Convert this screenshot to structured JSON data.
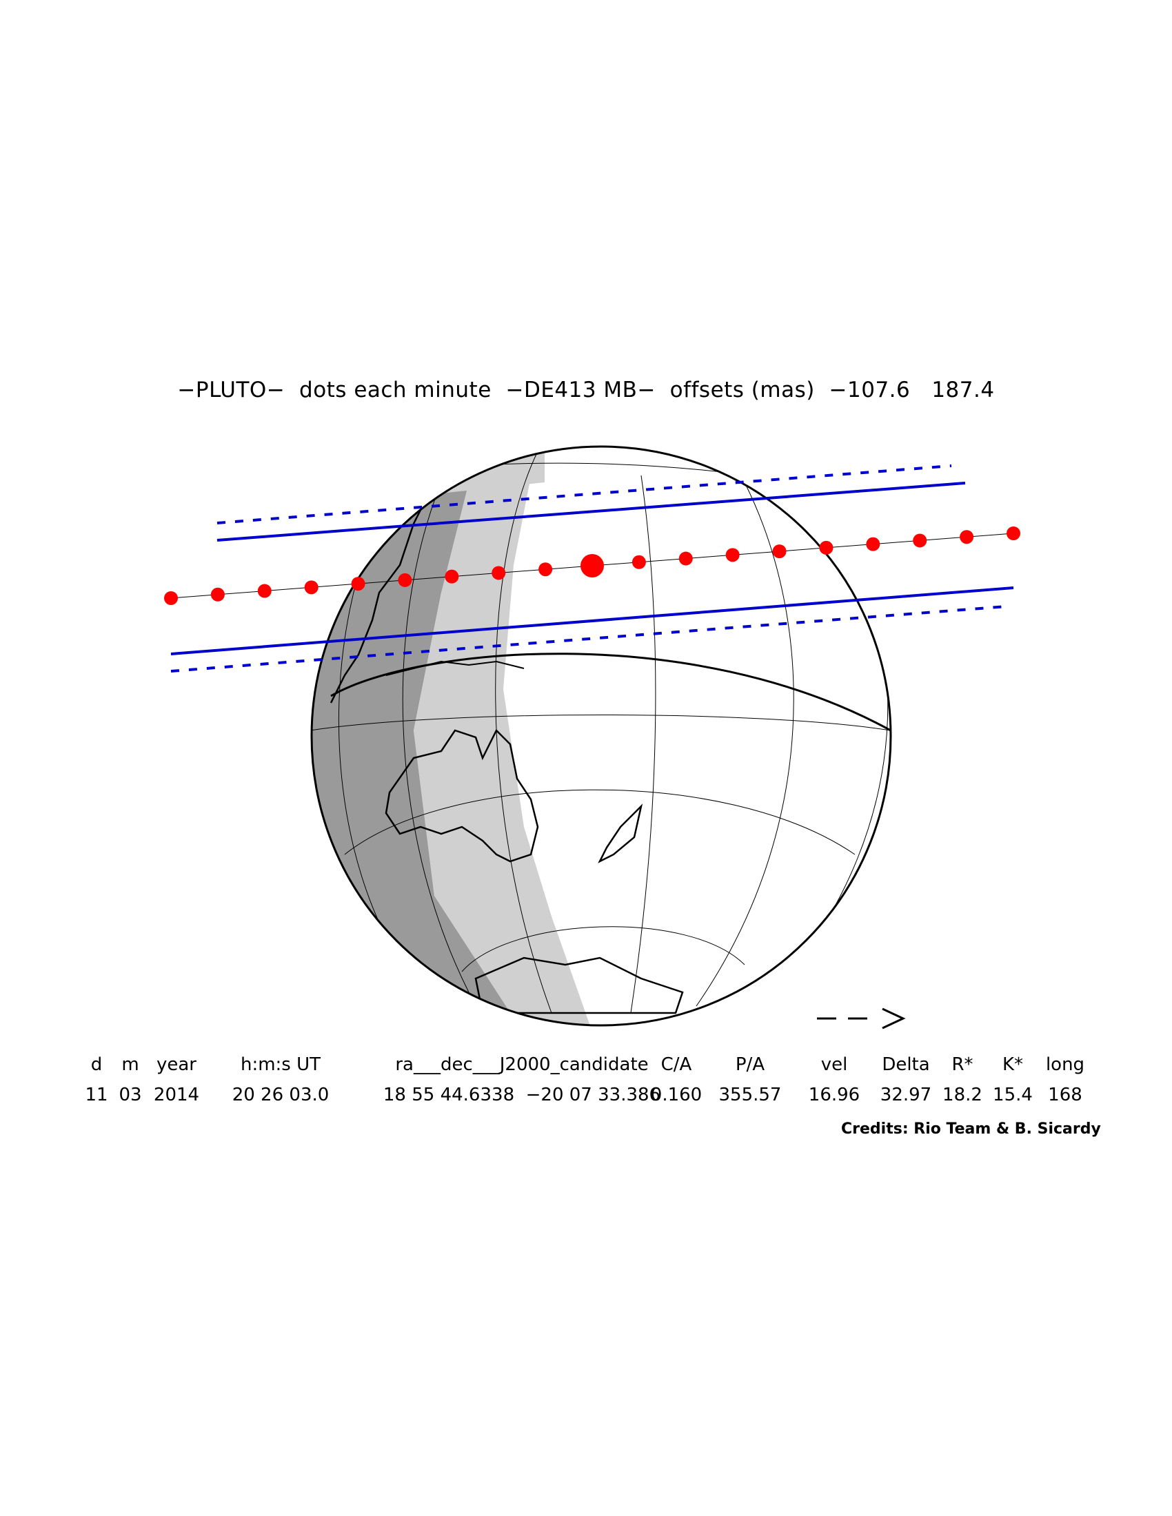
{
  "title": "−PLUTO−  dots each minute  −DE413 MB−  offsets (mas)  −107.6   187.4",
  "direction_arrow": "− −>",
  "table": {
    "headers": [
      "d",
      "m",
      "year",
      "h:m:s UT",
      "ra___dec___J2000_candidate",
      "C/A",
      "P/A",
      "vel",
      "Delta",
      "R*",
      "K*",
      "long"
    ],
    "values": [
      "11",
      "03",
      "2014",
      "20 26 03.0",
      "18 55 44.6338  −20 07 33.386",
      "0.160",
      "355.57",
      "16.96",
      "32.97",
      "18.2",
      "15.4",
      "168"
    ]
  },
  "credits": "Credits: Rio Team & B. Sicardy",
  "colors": {
    "path_dots": "#ff0000",
    "shadow_limits": "#0000cc",
    "night": "#9a9a9a",
    "twilight": "#d0d0d0"
  }
}
